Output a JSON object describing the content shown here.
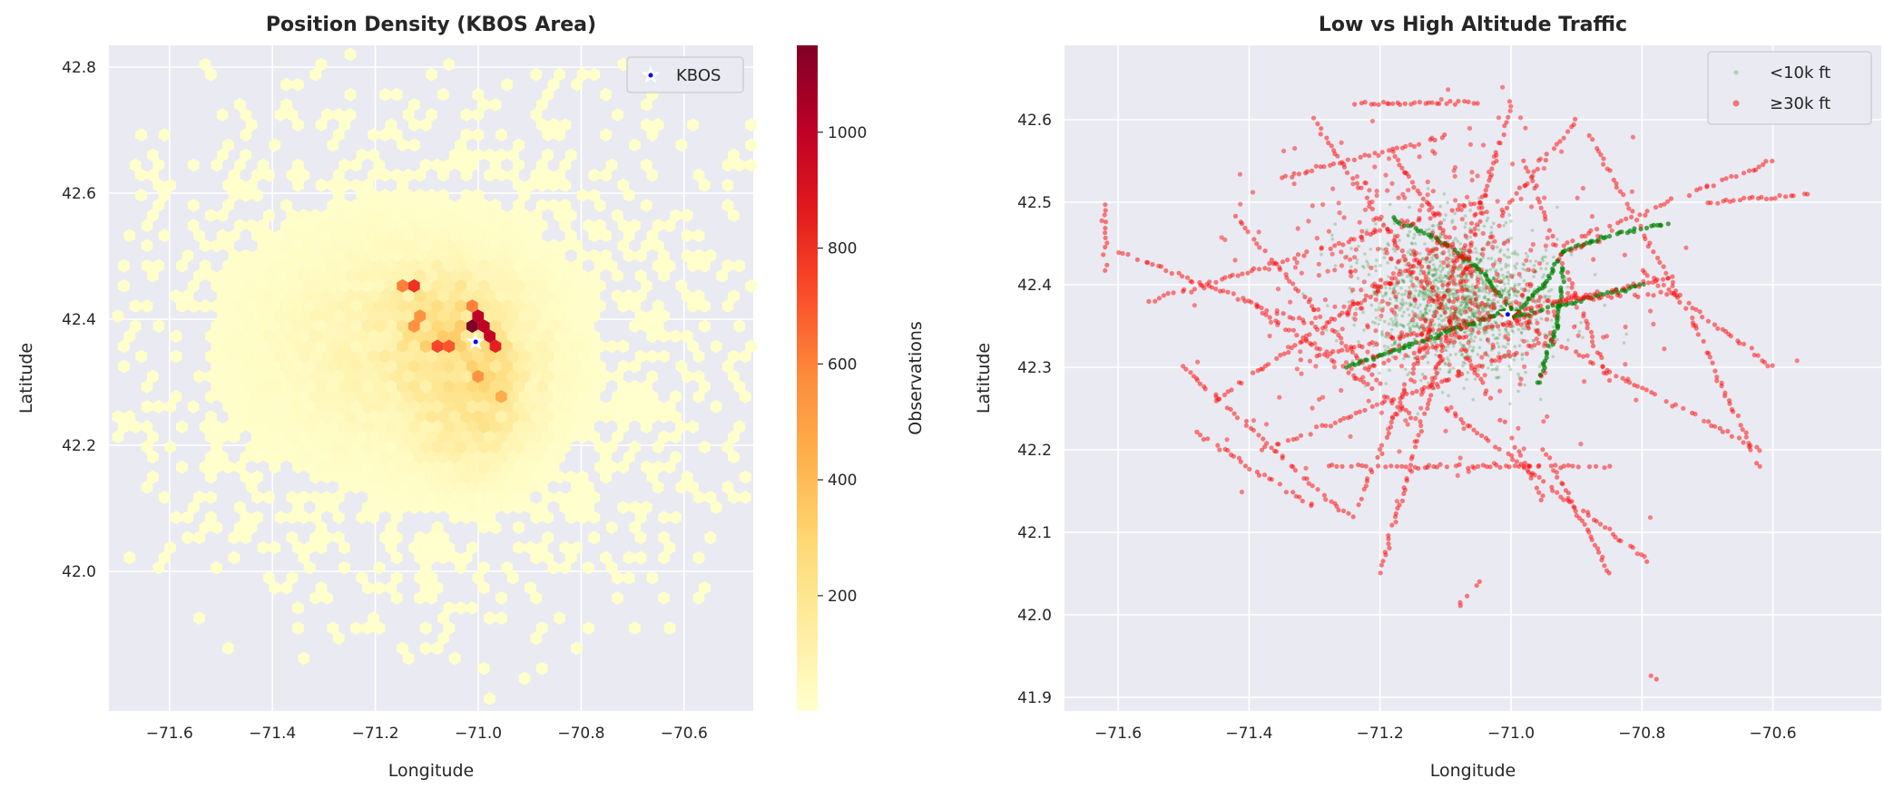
{
  "chart_data": [
    {
      "type": "heatmap",
      "subtype": "hexbin",
      "title": "Position Density (KBOS Area)",
      "xlabel": "Longitude",
      "ylabel": "Latitude",
      "xlim": [
        -71.73,
        -70.47
      ],
      "ylim": [
        41.88,
        42.84
      ],
      "xticks": [
        "−71.6",
        "−71.4",
        "−71.2",
        "−71.0",
        "−70.8",
        "−70.6"
      ],
      "xtick_values": [
        -71.6,
        -71.4,
        -71.2,
        -71.0,
        -70.8,
        -70.6
      ],
      "yticks": [
        "42.0",
        "42.2",
        "42.4",
        "42.6",
        "42.8"
      ],
      "ytick_values": [
        42.0,
        42.2,
        42.4,
        42.6,
        42.8
      ],
      "grid": true,
      "colormap": "YlOrRd",
      "colormap_stops": [
        "#ffffcc",
        "#ffeda0",
        "#fed976",
        "#feb24c",
        "#fd8d3c",
        "#fc4e2a",
        "#e31a1c",
        "#bd0026",
        "#800026"
      ],
      "colorbar": {
        "label": "Observations",
        "range": [
          1,
          1150
        ],
        "ticks": [
          "200",
          "400",
          "600",
          "800",
          "1000"
        ],
        "tick_values": [
          200,
          400,
          600,
          800,
          1000
        ]
      },
      "peak_cells": [
        {
          "lon": -71.005,
          "lat": 42.388,
          "count": 1150
        },
        {
          "lon": -70.993,
          "lat": 42.407,
          "count": 1000
        },
        {
          "lon": -70.982,
          "lat": 42.388,
          "count": 1000
        },
        {
          "lon": -70.97,
          "lat": 42.377,
          "count": 980
        },
        {
          "lon": -70.96,
          "lat": 42.36,
          "count": 850
        },
        {
          "lon": -71.12,
          "lat": 42.453,
          "count": 800
        },
        {
          "lon": -71.143,
          "lat": 42.453,
          "count": 600
        },
        {
          "lon": -71.07,
          "lat": 42.36,
          "count": 750
        },
        {
          "lon": -71.05,
          "lat": 42.36,
          "count": 700
        },
        {
          "lon": -71.014,
          "lat": 42.42,
          "count": 600
        },
        {
          "lon": -71.106,
          "lat": 42.407,
          "count": 550
        },
        {
          "lon": -71.12,
          "lat": 42.388,
          "count": 550
        },
        {
          "lon": -70.993,
          "lat": 42.312,
          "count": 550
        },
        {
          "lon": -70.95,
          "lat": 42.28,
          "count": 450
        }
      ],
      "marker": {
        "label": "KBOS",
        "lon": -71.005,
        "lat": 42.364
      },
      "legend": {
        "position": "top-right",
        "entries": [
          "KBOS"
        ]
      }
    },
    {
      "type": "scatter",
      "title": "Low vs High Altitude Traffic",
      "xlabel": "Longitude",
      "ylabel": "Latitude",
      "xlim": [
        -71.69,
        -70.49
      ],
      "ylim": [
        41.885,
        42.665
      ],
      "xticks": [
        "−71.6",
        "−71.4",
        "−71.2",
        "−71.0",
        "−70.8",
        "−70.6"
      ],
      "xtick_values": [
        -71.6,
        -71.4,
        -71.2,
        -71.0,
        -70.8,
        -70.6
      ],
      "yticks": [
        "41.9",
        "42.0",
        "42.1",
        "42.2",
        "42.3",
        "42.4",
        "42.5",
        "42.6"
      ],
      "ytick_values": [
        41.9,
        42.0,
        42.1,
        42.2,
        42.3,
        42.4,
        42.5,
        42.6
      ],
      "grid": true,
      "legend": {
        "position": "top-right"
      },
      "marker": {
        "lon": -71.005,
        "lat": 42.364
      },
      "series": [
        {
          "name": "<10k ft",
          "color": "#008000",
          "tracks": [
            [
              [
                -71.0,
                42.36
              ],
              [
                -70.95,
                42.4
              ],
              [
                -70.92,
                42.44
              ],
              [
                -70.85,
                42.46
              ],
              [
                -70.76,
                42.475
              ]
            ],
            [
              [
                -71.18,
                42.48
              ],
              [
                -71.1,
                42.45
              ],
              [
                -71.05,
                42.42
              ],
              [
                -71.0,
                42.37
              ]
            ],
            [
              [
                -70.96,
                42.28
              ],
              [
                -70.93,
                42.35
              ],
              [
                -70.92,
                42.42
              ]
            ],
            [
              [
                -71.0,
                42.36
              ],
              [
                -70.8,
                42.4
              ]
            ],
            [
              [
                -71.25,
                42.3
              ],
              [
                -71.0,
                42.37
              ]
            ]
          ],
          "cloud_center": [
            -71.08,
            42.38
          ]
        },
        {
          "name": "≥30k ft",
          "color": "#ff0000",
          "tracks": [
            [
              [
                -71.2,
                42.05
              ],
              [
                -71.0,
                42.62
              ]
            ],
            [
              [
                -71.24,
                42.12
              ],
              [
                -71.04,
                42.51
              ]
            ],
            [
              [
                -71.32,
                42.31
              ],
              [
                -70.75,
                42.41
              ]
            ],
            [
              [
                -71.45,
                42.26
              ],
              [
                -71.1,
                42.45
              ]
            ],
            [
              [
                -71.6,
                42.44
              ],
              [
                -71.3,
                42.35
              ]
            ],
            [
              [
                -71.55,
                42.38
              ],
              [
                -71.05,
                42.5
              ]
            ],
            [
              [
                -71.38,
                42.2
              ],
              [
                -70.95,
                42.33
              ]
            ],
            [
              [
                -71.28,
                42.18
              ],
              [
                -70.85,
                42.18
              ]
            ],
            [
              [
                -70.98,
                42.55
              ],
              [
                -70.85,
                42.28
              ]
            ],
            [
              [
                -71.15,
                42.44
              ],
              [
                -70.95,
                42.14
              ]
            ],
            [
              [
                -71.05,
                42.38
              ],
              [
                -70.62,
                42.2
              ]
            ],
            [
              [
                -70.88,
                42.58
              ],
              [
                -70.72,
                42.35
              ]
            ],
            [
              [
                -71.3,
                42.6
              ],
              [
                -71.12,
                42.38
              ]
            ],
            [
              [
                -71.35,
                42.53
              ],
              [
                -71.1,
                42.58
              ]
            ],
            [
              [
                -71.42,
                42.48
              ],
              [
                -71.2,
                42.28
              ]
            ],
            [
              [
                -71.5,
                42.3
              ],
              [
                -71.25,
                42.12
              ]
            ],
            [
              [
                -71.1,
                42.25
              ],
              [
                -70.78,
                42.06
              ]
            ],
            [
              [
                -70.92,
                42.45
              ],
              [
                -70.6,
                42.55
              ]
            ],
            [
              [
                -70.8,
                42.42
              ],
              [
                -70.6,
                42.3
              ]
            ],
            [
              [
                -71.25,
                42.62
              ],
              [
                -71.05,
                42.62
              ]
            ],
            [
              [
                -71.62,
                42.5
              ],
              [
                -71.62,
                42.42
              ]
            ],
            [
              [
                -70.95,
                42.2
              ],
              [
                -70.85,
                42.05
              ]
            ],
            [
              [
                -71.4,
                42.38
              ],
              [
                -71.15,
                42.24
              ]
            ],
            [
              [
                -71.02,
                42.48
              ],
              [
                -70.9,
                42.6
              ]
            ],
            [
              [
                -71.18,
                42.56
              ],
              [
                -71.05,
                42.4
              ]
            ],
            [
              [
                -71.08,
                42.01
              ],
              [
                -71.05,
                42.04
              ]
            ],
            [
              [
                -70.79,
                41.93
              ],
              [
                -70.78,
                41.92
              ]
            ],
            [
              [
                -70.95,
                42.38
              ],
              [
                -70.75,
                42.39
              ]
            ],
            [
              [
                -71.22,
                42.3
              ],
              [
                -70.98,
                42.36
              ]
            ],
            [
              [
                -70.7,
                42.5
              ],
              [
                -70.54,
                42.51
              ]
            ],
            [
              [
                -71.48,
                42.22
              ],
              [
                -71.3,
                42.13
              ]
            ],
            [
              [
                -70.72,
                42.35
              ],
              [
                -70.62,
                42.18
              ]
            ]
          ]
        }
      ]
    }
  ]
}
